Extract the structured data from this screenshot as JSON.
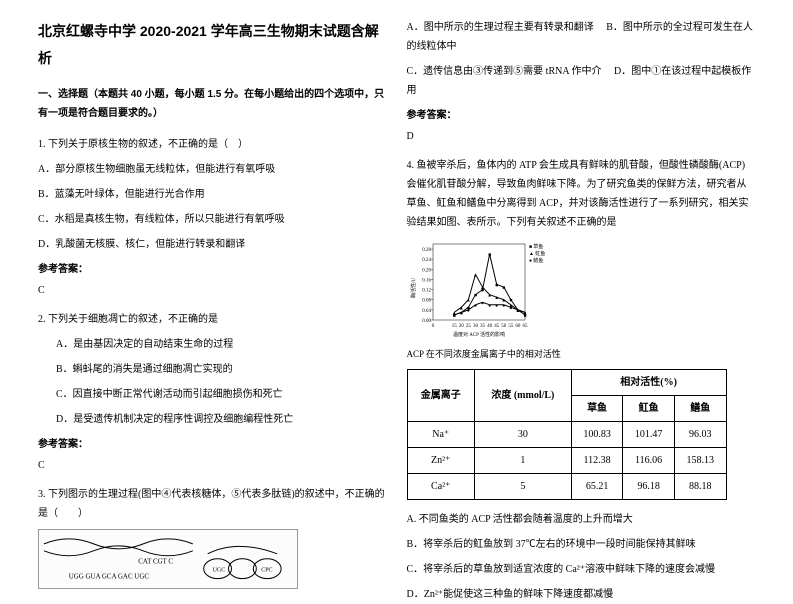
{
  "title": "北京红螺寺中学 2020-2021 学年高三生物期末试题含解析",
  "section1": "一、选择题（本题共 40 小题，每小题 1.5 分。在每小题给出的四个选项中，只有一项是符合题目要求的。）",
  "q1": {
    "stem": "1. 下列关于原核生物的叙述，不正确的是（　）",
    "A": "A．部分原核生物细胞虽无线粒体，但能进行有氧呼吸",
    "B": "B．蓝藻无叶绿体，但能进行光合作用",
    "C": "C．水稻是真核生物，有线粒体，所以只能进行有氧呼吸",
    "D": "D．乳酸菌无核膜、核仁，但能进行转录和翻译",
    "ansLabel": "参考答案：",
    "ans": "C"
  },
  "q2": {
    "stem": "2. 下列关于细胞凋亡的叙述，不正确的是",
    "A": "A．是由基因决定的自动结束生命的过程",
    "B": "B．蝌蚪尾的消失是通过细胞凋亡实现的",
    "C": "C．因直接中断正常代谢活动而引起细胞损伤和死亡",
    "D": "D．是受遗传机制决定的程序性调控及细胞编程性死亡",
    "ansLabel": "参考答案：",
    "ans": "C"
  },
  "q3": {
    "stem": "3. 下列图示的生理过程(图中④代表核糖体，⑤代表多肽链)的叙述中，不正确的是（　　）",
    "figText": "CAT CGT C\nUGG GUA GCA GAC UGC"
  },
  "right": {
    "optsA": "A．图中所示的生理过程主要有转录和翻译",
    "optsB": "B．图中所示的全过程可发生在人的线粒体中",
    "optsC": "C．遗传信息由③传递到⑤需要 tRNA 作中介",
    "optsD": "D．图中①在该过程中起模板作用",
    "ansLabel": "参考答案：",
    "ans": "D"
  },
  "q4": {
    "stem": "4. 鱼被宰杀后，鱼体内的 ATP 会生成具有鲜味的肌苷酸，但酸性磷酸酶(ACP)会催化肌苷酸分解，导致鱼肉鲜味下降。为了研究鱼类的保鲜方法，研究者从草鱼、𫚉鱼和鳝鱼中分离得到 ACP，并对该酶活性进行了一系列研究，相关实验结果如图、表所示。下列有关叙述不正确的是",
    "chart": {
      "type": "line",
      "xmin": 0,
      "xmax": 65,
      "ymin": 0,
      "ymax": 0.3,
      "xticks": [
        0,
        15,
        20,
        25,
        30,
        35,
        40,
        45,
        50,
        55,
        60,
        65
      ],
      "yticks": [
        0,
        0.04,
        0.08,
        0.12,
        0.16,
        0.2,
        0.24,
        0.28
      ],
      "xlabel": "温度对 ACP 活性的影响",
      "ylabel": "酶活性/U",
      "legend": [
        "草鱼",
        "𫚉鱼",
        "鳝鱼"
      ],
      "legend_markers": [
        "■",
        "▲",
        "●"
      ],
      "colors": [
        "#000000",
        "#000000",
        "#000000"
      ],
      "series_cao": [
        [
          15,
          0.02
        ],
        [
          20,
          0.03
        ],
        [
          25,
          0.05
        ],
        [
          30,
          0.1
        ],
        [
          35,
          0.12
        ],
        [
          40,
          0.26
        ],
        [
          45,
          0.14
        ],
        [
          50,
          0.13
        ],
        [
          55,
          0.08
        ],
        [
          60,
          0.04
        ],
        [
          65,
          0.02
        ]
      ],
      "series_bian": [
        [
          15,
          0.03
        ],
        [
          20,
          0.05
        ],
        [
          25,
          0.08
        ],
        [
          30,
          0.18
        ],
        [
          35,
          0.13
        ],
        [
          40,
          0.1
        ],
        [
          45,
          0.09
        ],
        [
          50,
          0.08
        ],
        [
          55,
          0.06
        ],
        [
          60,
          0.04
        ],
        [
          65,
          0.03
        ]
      ],
      "series_shan": [
        [
          15,
          0.02
        ],
        [
          20,
          0.03
        ],
        [
          25,
          0.04
        ],
        [
          30,
          0.06
        ],
        [
          35,
          0.07
        ],
        [
          40,
          0.06
        ],
        [
          45,
          0.06
        ],
        [
          50,
          0.06
        ],
        [
          55,
          0.05
        ],
        [
          60,
          0.04
        ],
        [
          65,
          0.03
        ]
      ],
      "bg": "#ffffff",
      "grid": "#cccccc",
      "line_width": 1
    },
    "tableCaption": "ACP 在不同浓度金属离子中的相对活性",
    "table": {
      "headers": [
        "金属离子",
        "浓度 (mmol/L)",
        "相对活性(%)"
      ],
      "sub": [
        "草鱼",
        "𫚉鱼",
        "鳝鱼"
      ],
      "rows": [
        [
          "Na⁺",
          "30",
          "100.83",
          "101.47",
          "96.03"
        ],
        [
          "Zn²⁺",
          "1",
          "112.38",
          "116.06",
          "158.13"
        ],
        [
          "Ca²⁺",
          "5",
          "65.21",
          "96.18",
          "88.18"
        ]
      ]
    },
    "optA": "A. 不同鱼类的 ACP 活性都会随着温度的上升而增大",
    "optB": "B．将宰杀后的𫚉鱼放到 37℃左右的环境中一段时间能保持其鲜味",
    "optC": "C．将宰杀后的草鱼放到适宜浓度的 Ca²⁺溶液中鲜味下降的速度会减慢",
    "optD": "D．Zn²⁺能促使这三种鱼的鲜味下降速度都减慢"
  }
}
